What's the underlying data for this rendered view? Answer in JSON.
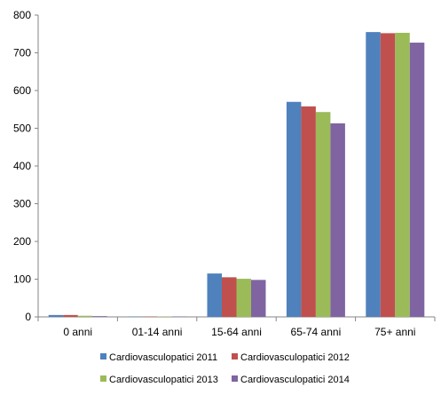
{
  "chart_data": {
    "type": "bar",
    "title": "",
    "xlabel": "",
    "ylabel": "",
    "categories": [
      "0 anni",
      "01-14 anni",
      "15-64 anni",
      "65-74 anni",
      "75+ anni"
    ],
    "series": [
      {
        "name": "Cardiovasculopatici 2011",
        "color": "#4F81BD",
        "values": [
          5,
          1,
          115,
          570,
          755
        ]
      },
      {
        "name": "Cardiovasculopatici 2012",
        "color": "#C0504D",
        "values": [
          5,
          1,
          105,
          558,
          752
        ]
      },
      {
        "name": "Cardiovasculopatici 2013",
        "color": "#9BBB59",
        "values": [
          3,
          1,
          101,
          543,
          753
        ]
      },
      {
        "name": "Cardiovasculopatici 2014",
        "color": "#8064A2",
        "values": [
          2,
          1,
          98,
          513,
          727
        ]
      }
    ],
    "ylim": [
      0,
      800
    ],
    "yticks": [
      0,
      100,
      200,
      300,
      400,
      500,
      600,
      700,
      800
    ],
    "grid": false,
    "legend_position": "bottom"
  }
}
